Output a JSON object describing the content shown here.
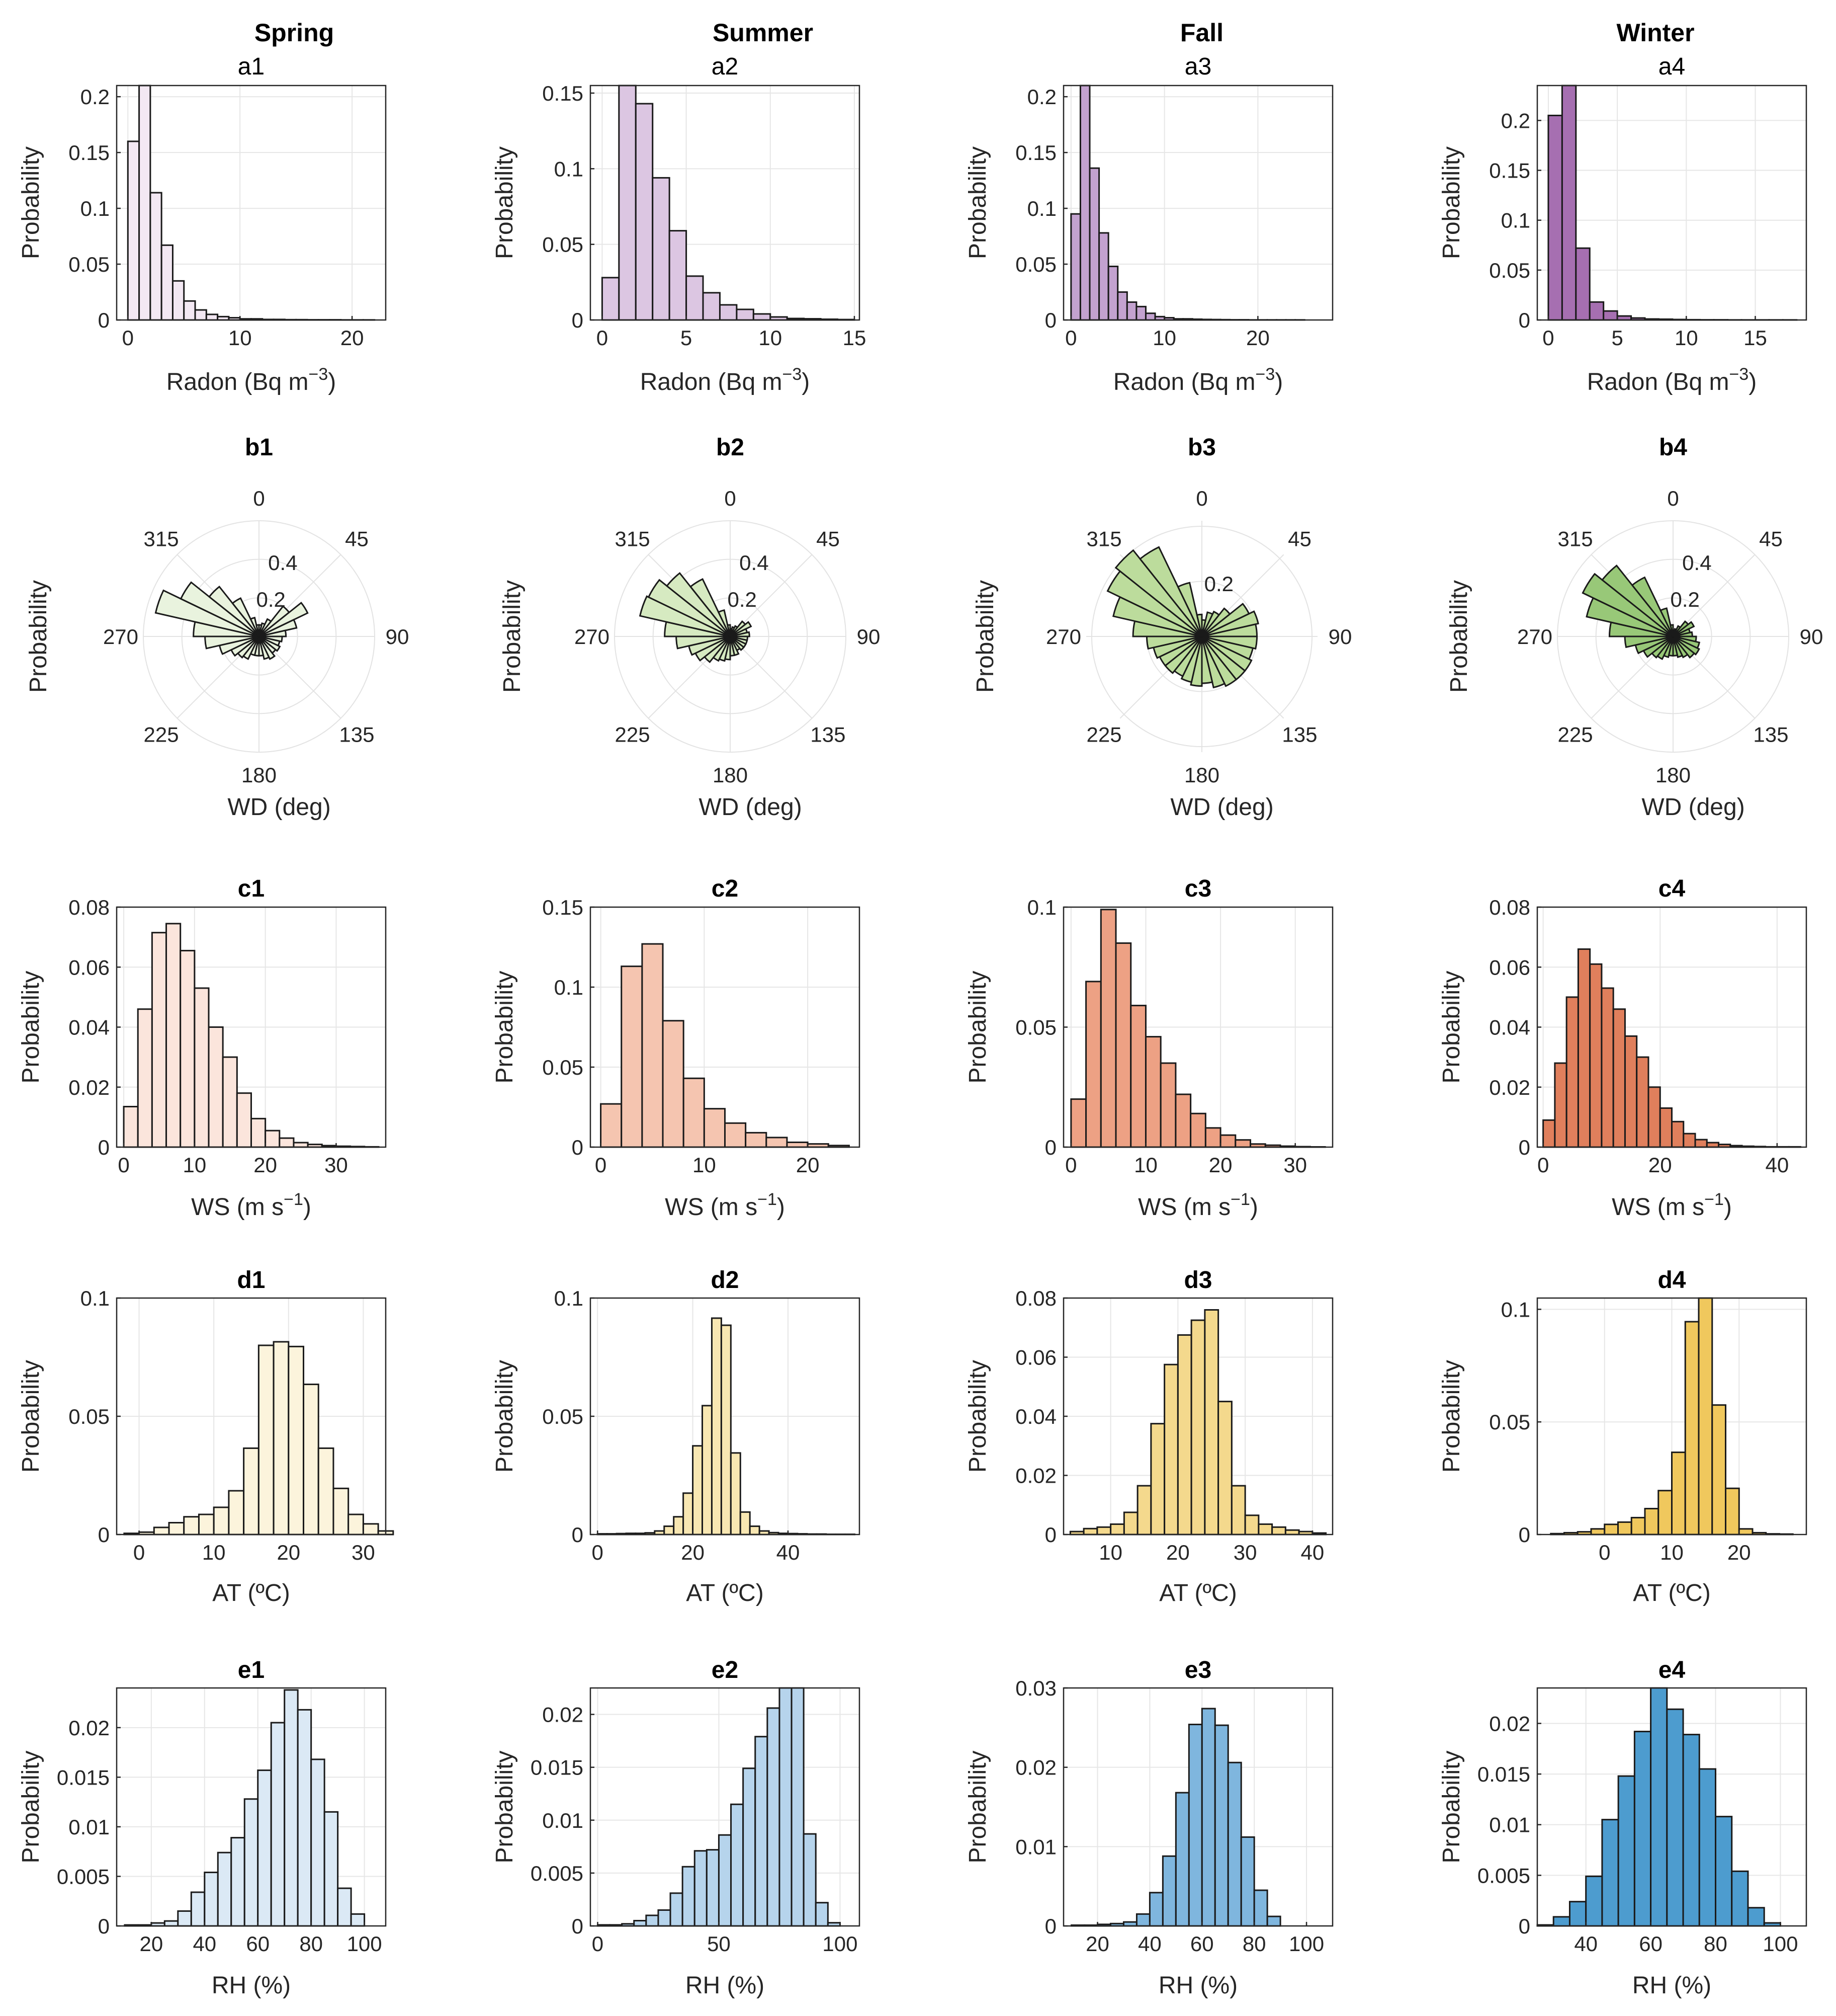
{
  "figure": {
    "column_titles": [
      "Spring",
      "Summer",
      "Fall",
      "Winter"
    ],
    "y_label": "Probability"
  },
  "colors": {
    "radon": [
      "#f3e8f3",
      "#dcc6e2",
      "#c3a2cf",
      "#a66fb1"
    ],
    "wd": [
      "#e9f3de",
      "#d6eac1",
      "#bcdc9c",
      "#98c878"
    ],
    "ws": [
      "#fbe5dc",
      "#f5c5b0",
      "#eda184",
      "#e07f5c"
    ],
    "at": [
      "#fcf4dc",
      "#f8e7b2",
      "#f4d98d",
      "#f0c85d"
    ],
    "rh": [
      "#dbe9f5",
      "#b6d4ec",
      "#7fb6de",
      "#4d9ccf"
    ]
  },
  "chart_data": [
    {
      "id": "a1",
      "type": "bar",
      "title": "a1",
      "xlabel": "Radon (Bq m^-3)",
      "ylabel": "Probability",
      "binwidth": 1,
      "x0": 0,
      "xlim": [
        -1,
        23
      ],
      "ylim": [
        0,
        0.21
      ],
      "xticks": [
        0,
        10,
        20
      ],
      "yticks": [
        0,
        0.05,
        0.1,
        0.15,
        0.2
      ],
      "yticklabels": [
        "0",
        "0.05",
        "0.1",
        "0.15",
        "0.2"
      ],
      "values": [
        0.16,
        0.21,
        0.114,
        0.067,
        0.035,
        0.017,
        0.009,
        0.005,
        0.003,
        0.002,
        0.001,
        0.001,
        0.0005,
        0.0005,
        0.0003,
        0.0003,
        0.0002,
        0.0002,
        0.0002,
        0.0001,
        0.0001,
        0.0001
      ]
    },
    {
      "id": "a2",
      "type": "bar",
      "title": "a2",
      "xlabel": "Radon (Bq m^-3)",
      "ylabel": "Probability",
      "binwidth": 1,
      "x0": 0,
      "xlim": [
        -0.7,
        15.3
      ],
      "ylim": [
        0,
        0.155
      ],
      "xticks": [
        0,
        5,
        10,
        15
      ],
      "yticks": [
        0,
        0.05,
        0.1,
        0.15
      ],
      "yticklabels": [
        "0",
        "0.05",
        "0.1",
        "0.15"
      ],
      "values": [
        0.028,
        0.155,
        0.143,
        0.094,
        0.059,
        0.029,
        0.018,
        0.01,
        0.007,
        0.004,
        0.002,
        0.001,
        0.0008,
        0.0005,
        0.0003
      ]
    },
    {
      "id": "a3",
      "type": "bar",
      "title": "a3",
      "xlabel": "Radon (Bq m^-3)",
      "ylabel": "Probability",
      "binwidth": 1,
      "x0": 0,
      "xlim": [
        -0.8,
        28
      ],
      "ylim": [
        0,
        0.21
      ],
      "xticks": [
        0,
        10,
        20
      ],
      "yticks": [
        0,
        0.05,
        0.1,
        0.15,
        0.2
      ],
      "yticklabels": [
        "0",
        "0.05",
        "0.1",
        "0.15",
        "0.2"
      ],
      "values": [
        0.095,
        0.21,
        0.136,
        0.078,
        0.048,
        0.025,
        0.016,
        0.012,
        0.006,
        0.003,
        0.002,
        0.001,
        0.001,
        0.0007,
        0.0005,
        0.0004,
        0.0003,
        0.0002,
        0.0002,
        0.0001,
        0.0001,
        0.0001,
        0.0001,
        0.0001,
        0.0001
      ]
    },
    {
      "id": "a4",
      "type": "bar",
      "title": "a4",
      "xlabel": "Radon (Bq m^-3)",
      "ylabel": "Probability",
      "binwidth": 1,
      "x0": 0,
      "xlim": [
        -0.8,
        18.7
      ],
      "ylim": [
        0,
        0.235
      ],
      "xticks": [
        0,
        5,
        10,
        15
      ],
      "yticks": [
        0,
        0.05,
        0.1,
        0.15,
        0.2
      ],
      "yticklabels": [
        "0",
        "0.05",
        "0.1",
        "0.15",
        "0.2"
      ],
      "values": [
        0.205,
        0.235,
        0.072,
        0.018,
        0.009,
        0.004,
        0.002,
        0.001,
        0.0008,
        0.0005,
        0.0003,
        0.0002,
        0.0002,
        0.0001,
        0.0001,
        0.0001,
        0.0001,
        0.0001
      ]
    },
    {
      "id": "b1",
      "type": "polar",
      "title": "b1",
      "xlabel": "WD (deg)",
      "ylabel": "Probability",
      "rmax": 0.6,
      "rings": [
        0.2,
        0.4,
        0.6
      ],
      "ringlabels": [
        "0.2",
        "0.4"
      ],
      "anglelabels": [
        "0",
        "45",
        "90",
        "135",
        "180",
        "225",
        "270",
        "315"
      ],
      "values": [
        0.06,
        0.07,
        0.1,
        0.2,
        0.28,
        0.2,
        0.14,
        0.12,
        0.11,
        0.12,
        0.11,
        0.13,
        0.12,
        0.1,
        0.1,
        0.1,
        0.13,
        0.14,
        0.16,
        0.21,
        0.28,
        0.34,
        0.55,
        0.45,
        0.33,
        0.22,
        0.1,
        0.06
      ]
    },
    {
      "id": "b2",
      "type": "polar",
      "title": "b2",
      "xlabel": "WD (deg)",
      "ylabel": "Probability",
      "rmax": 0.6,
      "rings": [
        0.2,
        0.4,
        0.6
      ],
      "ringlabels": [
        "0.2",
        "0.4"
      ],
      "anglelabels": [
        "0",
        "45",
        "90",
        "135",
        "180",
        "225",
        "270",
        "315"
      ],
      "values": [
        0.04,
        0.05,
        0.06,
        0.1,
        0.12,
        0.09,
        0.1,
        0.09,
        0.09,
        0.09,
        0.09,
        0.08,
        0.1,
        0.1,
        0.12,
        0.13,
        0.14,
        0.17,
        0.2,
        0.22,
        0.28,
        0.34,
        0.48,
        0.47,
        0.42,
        0.33,
        0.14,
        0.06
      ]
    },
    {
      "id": "b3",
      "type": "polar",
      "title": "b3",
      "xlabel": "WD (deg)",
      "ylabel": "Probability",
      "rmax": 0.42,
      "rings": [
        0.2,
        0.4
      ],
      "ringlabels": [
        "0.2"
      ],
      "anglelabels": [
        "0",
        "45",
        "90",
        "135",
        "180",
        "225",
        "270",
        "315"
      ],
      "values": [
        0.06,
        0.09,
        0.1,
        0.13,
        0.19,
        0.21,
        0.2,
        0.2,
        0.19,
        0.2,
        0.2,
        0.2,
        0.19,
        0.17,
        0.18,
        0.17,
        0.16,
        0.17,
        0.17,
        0.18,
        0.2,
        0.25,
        0.33,
        0.38,
        0.4,
        0.36,
        0.2,
        0.08
      ]
    },
    {
      "id": "b4",
      "type": "polar",
      "title": "b4",
      "xlabel": "WD (deg)",
      "ylabel": "Probability",
      "rmax": 0.6,
      "rings": [
        0.2,
        0.4,
        0.6
      ],
      "ringlabels": [
        "0.2",
        "0.4"
      ],
      "anglelabels": [
        "0",
        "45",
        "90",
        "135",
        "180",
        "225",
        "270",
        "315"
      ],
      "values": [
        0.03,
        0.04,
        0.06,
        0.1,
        0.12,
        0.09,
        0.1,
        0.12,
        0.14,
        0.15,
        0.14,
        0.12,
        0.11,
        0.1,
        0.1,
        0.11,
        0.13,
        0.14,
        0.17,
        0.2,
        0.25,
        0.33,
        0.46,
        0.52,
        0.47,
        0.34,
        0.15,
        0.06
      ]
    },
    {
      "id": "c1",
      "type": "bar",
      "title": "c1",
      "xlabel": "WS (m s^-1)",
      "ylabel": "Probability",
      "binwidth": 2,
      "x0": 0,
      "xlim": [
        -1,
        37
      ],
      "ylim": [
        0,
        0.08
      ],
      "xticks": [
        0,
        10,
        20,
        30
      ],
      "yticks": [
        0,
        0.02,
        0.04,
        0.06,
        0.08
      ],
      "yticklabels": [
        "0",
        "0.02",
        "0.04",
        "0.06",
        "0.08"
      ],
      "values": [
        0.0135,
        0.046,
        0.0715,
        0.0745,
        0.0655,
        0.053,
        0.04,
        0.03,
        0.018,
        0.0095,
        0.0055,
        0.003,
        0.0015,
        0.0009,
        0.0005,
        0.0003,
        0.0002,
        0.0001
      ]
    },
    {
      "id": "c2",
      "type": "bar",
      "title": "c2",
      "xlabel": "WS (m s^-1)",
      "ylabel": "Probability",
      "binwidth": 2,
      "x0": 0,
      "xlim": [
        -1,
        25
      ],
      "ylim": [
        0,
        0.15
      ],
      "xticks": [
        0,
        10,
        20
      ],
      "yticks": [
        0,
        0.05,
        0.1,
        0.15
      ],
      "yticklabels": [
        "0",
        "0.05",
        "0.1",
        "0.15"
      ],
      "values": [
        0.027,
        0.113,
        0.127,
        0.079,
        0.043,
        0.024,
        0.015,
        0.009,
        0.006,
        0.003,
        0.002,
        0.001
      ]
    },
    {
      "id": "c3",
      "type": "bar",
      "title": "c3",
      "xlabel": "WS (m s^-1)",
      "ylabel": "Probability",
      "binwidth": 2,
      "x0": 0,
      "xlim": [
        -1,
        35
      ],
      "ylim": [
        0,
        0.1
      ],
      "xticks": [
        0,
        10,
        20,
        30
      ],
      "yticks": [
        0,
        0.05,
        0.1
      ],
      "yticklabels": [
        "0",
        "0.05",
        "0.1"
      ],
      "values": [
        0.02,
        0.069,
        0.099,
        0.085,
        0.059,
        0.046,
        0.035,
        0.022,
        0.014,
        0.008,
        0.005,
        0.003,
        0.0013,
        0.0008,
        0.0004,
        0.0002,
        0.0001
      ]
    },
    {
      "id": "c4",
      "type": "bar",
      "title": "c4",
      "xlabel": "WS (m s^-1)",
      "ylabel": "Probability",
      "binwidth": 2,
      "x0": 0,
      "xlim": [
        -1,
        45
      ],
      "ylim": [
        0,
        0.08
      ],
      "xticks": [
        0,
        20,
        40
      ],
      "yticks": [
        0,
        0.02,
        0.04,
        0.06,
        0.08
      ],
      "yticklabels": [
        "0",
        "0.02",
        "0.04",
        "0.06",
        "0.08"
      ],
      "values": [
        0.009,
        0.028,
        0.05,
        0.066,
        0.061,
        0.053,
        0.046,
        0.037,
        0.03,
        0.02,
        0.013,
        0.0085,
        0.0045,
        0.0025,
        0.0015,
        0.0009,
        0.0005,
        0.0003,
        0.0002,
        0.0001,
        0.0001,
        0.0001
      ]
    },
    {
      "id": "d1",
      "type": "bar",
      "title": "d1",
      "xlabel": "AT (ºC)",
      "ylabel": "Probability",
      "binwidth": 2,
      "x0": -2,
      "xlim": [
        -3,
        33
      ],
      "ylim": [
        0,
        0.1
      ],
      "xticks": [
        0,
        10,
        20,
        30
      ],
      "yticks": [
        0,
        0.05,
        0.1
      ],
      "yticklabels": [
        "0",
        "0.05",
        "0.1"
      ],
      "values": [
        0.0005,
        0.001,
        0.003,
        0.005,
        0.0075,
        0.0085,
        0.0115,
        0.0185,
        0.0365,
        0.08,
        0.0815,
        0.0795,
        0.0635,
        0.0365,
        0.0195,
        0.0085,
        0.0045,
        0.0015
      ]
    },
    {
      "id": "d2",
      "type": "bar",
      "title": "d2",
      "xlabel": "AT (ºC)",
      "ylabel": "Probability",
      "binwidth": 2,
      "x0": 0,
      "xlim": [
        -1.5,
        55
      ],
      "ylim": [
        0,
        0.1
      ],
      "xticks": [
        0,
        20,
        40
      ],
      "yticks": [
        0,
        0.05,
        0.1
      ],
      "yticklabels": [
        "0",
        "0.05",
        "0.1"
      ],
      "values": [
        0.0003,
        0.0003,
        0.0004,
        0.0005,
        0.0005,
        0.0007,
        0.0015,
        0.0035,
        0.0075,
        0.0175,
        0.0375,
        0.0545,
        0.0915,
        0.0885,
        0.0345,
        0.0095,
        0.0035,
        0.0015,
        0.0008,
        0.0005,
        0.0004,
        0.0003,
        0.0002,
        0.0002,
        0.0001,
        0.0001,
        0.0001
      ]
    },
    {
      "id": "d3",
      "type": "bar",
      "title": "d3",
      "xlabel": "AT (ºC)",
      "ylabel": "Probability",
      "binwidth": 2,
      "x0": 4,
      "xlim": [
        3,
        43
      ],
      "ylim": [
        0,
        0.08
      ],
      "xticks": [
        10,
        20,
        30,
        40
      ],
      "yticks": [
        0,
        0.02,
        0.04,
        0.06,
        0.08
      ],
      "yticklabels": [
        "0",
        "0.02",
        "0.04",
        "0.06",
        "0.08"
      ],
      "values": [
        0.001,
        0.002,
        0.0025,
        0.0035,
        0.0075,
        0.0165,
        0.0375,
        0.0575,
        0.0675,
        0.0725,
        0.076,
        0.045,
        0.0165,
        0.0065,
        0.0035,
        0.0025,
        0.0015,
        0.001,
        0.0005
      ]
    },
    {
      "id": "d4",
      "type": "bar",
      "title": "d4",
      "xlabel": "AT (ºC)",
      "ylabel": "Probability",
      "binwidth": 2,
      "x0": -8,
      "xlim": [
        -10,
        30
      ],
      "ylim": [
        0,
        0.105
      ],
      "xticks": [
        0,
        10,
        20
      ],
      "yticks": [
        0,
        0.05,
        0.1
      ],
      "yticklabels": [
        "0",
        "0.05",
        "0.1"
      ],
      "values": [
        0.0004,
        0.0008,
        0.0012,
        0.0025,
        0.0045,
        0.0055,
        0.0075,
        0.0115,
        0.0195,
        0.0365,
        0.0945,
        0.106,
        0.0575,
        0.0205,
        0.0025,
        0.0008,
        0.0003,
        0.0002
      ]
    },
    {
      "id": "e1",
      "type": "bar",
      "title": "e1",
      "xlabel": "RH (%)",
      "ylabel": "Probability",
      "binwidth": 5,
      "x0": 10,
      "xlim": [
        7,
        108
      ],
      "ylim": [
        0,
        0.024
      ],
      "xticks": [
        20,
        40,
        60,
        80,
        100
      ],
      "yticks": [
        0,
        0.005,
        0.01,
        0.015,
        0.02
      ],
      "yticklabels": [
        "0",
        "0.005",
        "0.01",
        "0.015",
        "0.02"
      ],
      "values": [
        0.0001,
        0.0001,
        0.0003,
        0.0005,
        0.0015,
        0.0034,
        0.0054,
        0.0074,
        0.0089,
        0.0128,
        0.0157,
        0.0205,
        0.0238,
        0.0218,
        0.0168,
        0.0115,
        0.0038,
        0.0012
      ]
    },
    {
      "id": "e2",
      "type": "bar",
      "title": "e2",
      "xlabel": "RH (%)",
      "ylabel": "Probability",
      "binwidth": 5,
      "x0": 0,
      "xlim": [
        -3,
        108
      ],
      "ylim": [
        0,
        0.0225
      ],
      "xticks": [
        0,
        50,
        100
      ],
      "yticks": [
        0,
        0.005,
        0.01,
        0.015,
        0.02
      ],
      "yticklabels": [
        "0",
        "0.005",
        "0.01",
        "0.015",
        "0.02"
      ],
      "values": [
        0.0001,
        0.0001,
        0.0002,
        0.0005,
        0.001,
        0.0015,
        0.0031,
        0.0056,
        0.0071,
        0.0072,
        0.0086,
        0.0115,
        0.0149,
        0.0179,
        0.0206,
        0.0225,
        0.0225,
        0.0087,
        0.0022,
        0.0003
      ]
    },
    {
      "id": "e3",
      "type": "bar",
      "title": "e3",
      "xlabel": "RH (%)",
      "ylabel": "Probability",
      "binwidth": 5,
      "x0": 10,
      "xlim": [
        7,
        110
      ],
      "ylim": [
        0,
        0.03
      ],
      "xticks": [
        20,
        40,
        60,
        80,
        100
      ],
      "yticks": [
        0,
        0.01,
        0.02,
        0.03
      ],
      "yticklabels": [
        "0",
        "0.01",
        "0.02",
        "0.03"
      ],
      "values": [
        0.0001,
        0.0001,
        0.0002,
        0.0003,
        0.0005,
        0.0015,
        0.0042,
        0.0088,
        0.0168,
        0.0254,
        0.0274,
        0.0253,
        0.0206,
        0.0112,
        0.0045,
        0.0012
      ]
    },
    {
      "id": "e4",
      "type": "bar",
      "title": "e4",
      "xlabel": "RH (%)",
      "ylabel": "Probability",
      "binwidth": 5,
      "x0": 25,
      "xlim": [
        25,
        108
      ],
      "ylim": [
        0,
        0.0235
      ],
      "xticks": [
        40,
        60,
        80,
        100
      ],
      "yticks": [
        0,
        0.005,
        0.01,
        0.015,
        0.02
      ],
      "yticklabels": [
        "0",
        "0.005",
        "0.01",
        "0.015",
        "0.02"
      ],
      "values": [
        0.0001,
        0.0009,
        0.0024,
        0.0049,
        0.0105,
        0.0148,
        0.0192,
        0.0236,
        0.0214,
        0.0189,
        0.0155,
        0.0108,
        0.0054,
        0.0018,
        0.0003
      ]
    }
  ]
}
